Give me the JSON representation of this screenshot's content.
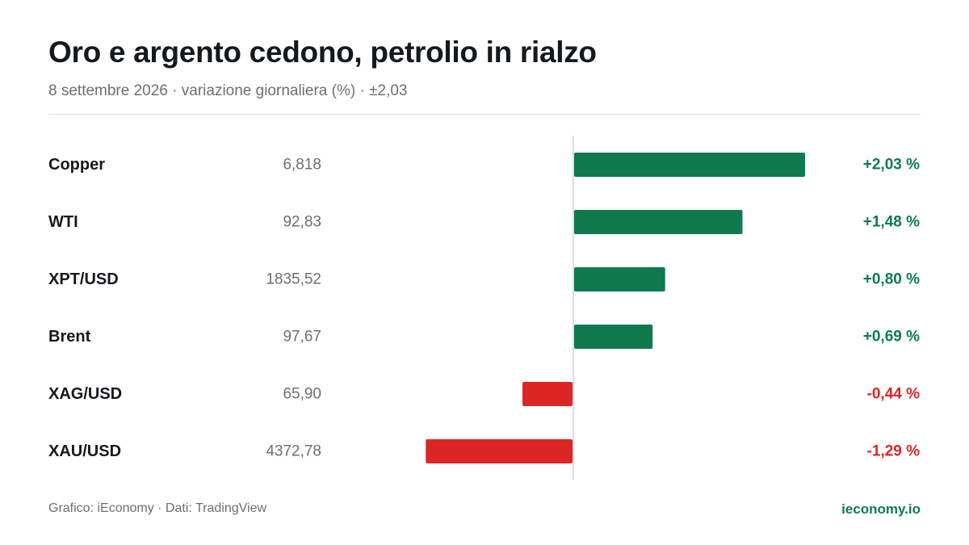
{
  "header": {
    "title": "Oro e argento cedono, petrolio in rialzo",
    "subtitle": "8 settembre 2026 · variazione giornaliera (%) · ±2,03"
  },
  "footer": {
    "source": "Grafico: iEconomy · Dati: TradingView",
    "brand": "ieconomy.io"
  },
  "colors": {
    "positive": "#0e7a4e",
    "negative": "#dc2626",
    "brand": "#0e7a4e"
  },
  "chart_data": {
    "type": "bar",
    "orientation": "horizontal",
    "categories": [
      "Copper",
      "WTI",
      "XPT/USD",
      "Brent",
      "XAG/USD",
      "XAU/USD"
    ],
    "prices": [
      "6,818",
      "92,83",
      "1835,52",
      "97,67",
      "65,90",
      "4372,78"
    ],
    "values": [
      2.03,
      1.48,
      0.8,
      0.69,
      -0.44,
      -1.29
    ],
    "value_labels": [
      "+2,03 %",
      "+1,48 %",
      "+0,80 %",
      "+0,69 %",
      "-0,44 %",
      "-1,29 %"
    ],
    "xlim": [
      -2.03,
      2.03
    ],
    "title": "Oro e argento cedono, petrolio in rialzo",
    "xlabel": "",
    "ylabel": "",
    "grid": false
  }
}
